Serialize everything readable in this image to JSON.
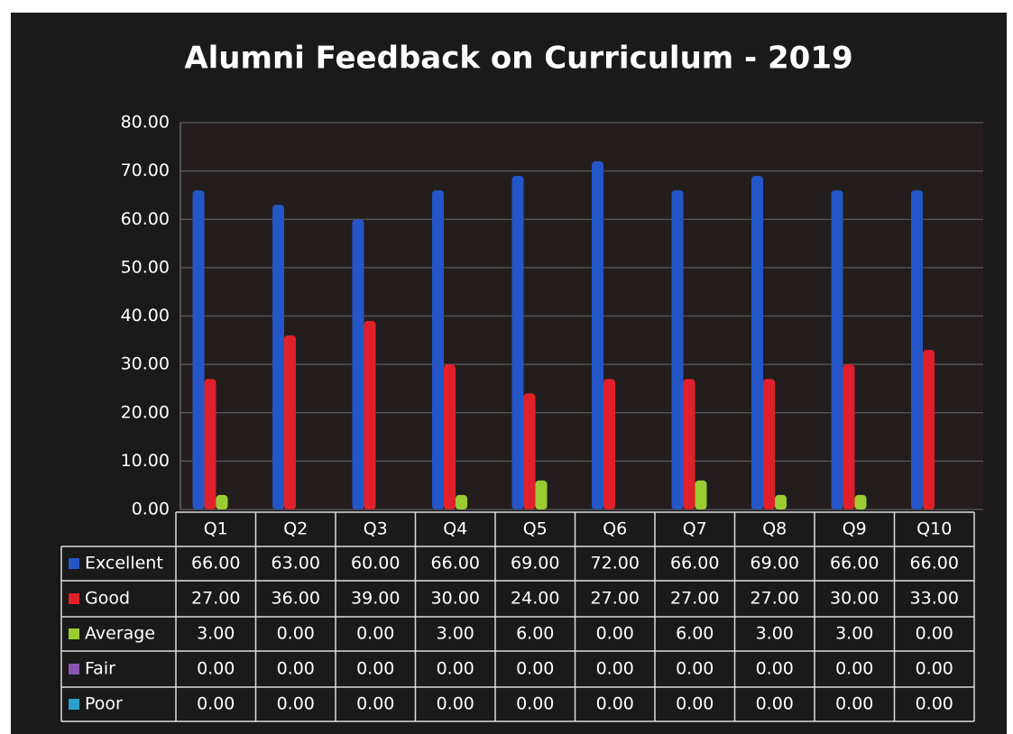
{
  "chart_data": {
    "type": "bar",
    "title": "Alumni Feedback on Curriculum - 2019",
    "categories": [
      "Q1",
      "Q2",
      "Q3",
      "Q4",
      "Q5",
      "Q6",
      "Q7",
      "Q8",
      "Q9",
      "Q10"
    ],
    "series": [
      {
        "name": "Excellent",
        "color": "#2456c8",
        "values": [
          66,
          63,
          60,
          66,
          69,
          72,
          66,
          69,
          66,
          66
        ],
        "value_labels": [
          "66.00",
          "63.00",
          "60.00",
          "66.00",
          "69.00",
          "72.00",
          "66.00",
          "69.00",
          "66.00",
          "66.00"
        ]
      },
      {
        "name": "Good",
        "color": "#e0202a",
        "values": [
          27,
          36,
          39,
          30,
          24,
          27,
          27,
          27,
          30,
          33
        ],
        "value_labels": [
          "27.00",
          "36.00",
          "39.00",
          "30.00",
          "24.00",
          "27.00",
          "27.00",
          "27.00",
          "30.00",
          "33.00"
        ]
      },
      {
        "name": "Average",
        "color": "#9acd32",
        "values": [
          3,
          0,
          0,
          3,
          6,
          0,
          6,
          3,
          3,
          0
        ],
        "value_labels": [
          "3.00",
          "0.00",
          "0.00",
          "3.00",
          "6.00",
          "0.00",
          "6.00",
          "3.00",
          "3.00",
          "0.00"
        ]
      },
      {
        "name": "Fair",
        "color": "#8a55b0",
        "values": [
          0,
          0,
          0,
          0,
          0,
          0,
          0,
          0,
          0,
          0
        ],
        "value_labels": [
          "0.00",
          "0.00",
          "0.00",
          "0.00",
          "0.00",
          "0.00",
          "0.00",
          "0.00",
          "0.00",
          "0.00"
        ]
      },
      {
        "name": "Poor",
        "color": "#2aa0c8",
        "values": [
          0,
          0,
          0,
          0,
          0,
          0,
          0,
          0,
          0,
          0
        ],
        "value_labels": [
          "0.00",
          "0.00",
          "0.00",
          "0.00",
          "0.00",
          "0.00",
          "0.00",
          "0.00",
          "0.00",
          "0.00"
        ]
      }
    ],
    "ylim": [
      0,
      80
    ],
    "yticks": [
      {
        "value": 0,
        "label": "0.00"
      },
      {
        "value": 10,
        "label": "10.00"
      },
      {
        "value": 20,
        "label": "20.00"
      },
      {
        "value": 30,
        "label": "30.00"
      },
      {
        "value": 40,
        "label": "40.00"
      },
      {
        "value": 50,
        "label": "50.00"
      },
      {
        "value": 60,
        "label": "60.00"
      },
      {
        "value": 70,
        "label": "70.00"
      },
      {
        "value": 80,
        "label": "80.00"
      }
    ],
    "grid": true
  }
}
